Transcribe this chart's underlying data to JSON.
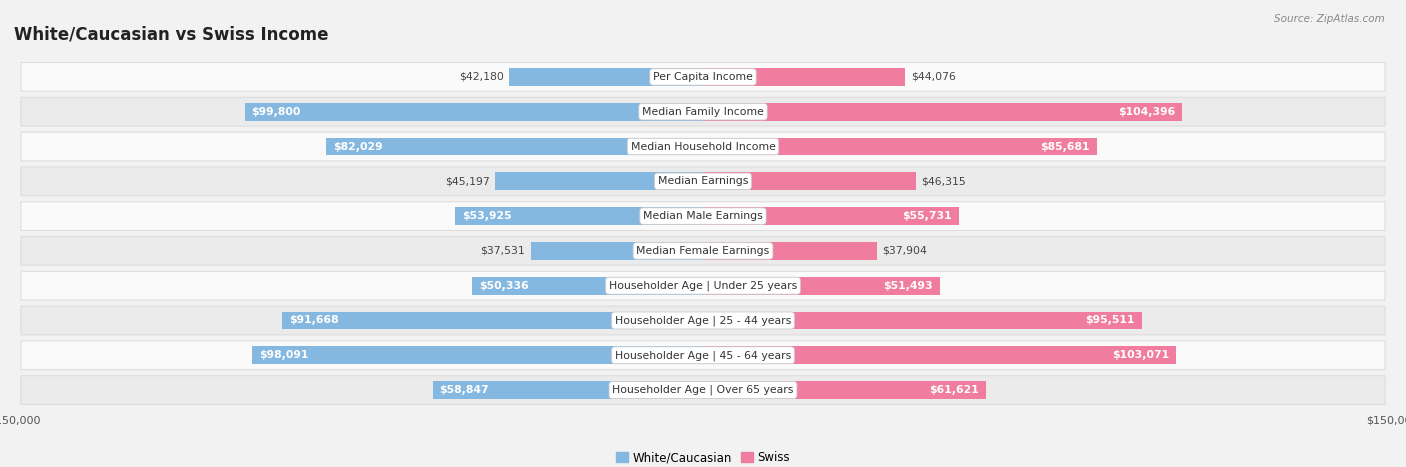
{
  "title": "White/Caucasian vs Swiss Income",
  "source": "Source: ZipAtlas.com",
  "categories": [
    "Per Capita Income",
    "Median Family Income",
    "Median Household Income",
    "Median Earnings",
    "Median Male Earnings",
    "Median Female Earnings",
    "Householder Age | Under 25 years",
    "Householder Age | 25 - 44 years",
    "Householder Age | 45 - 64 years",
    "Householder Age | Over 65 years"
  ],
  "white_values": [
    42180,
    99800,
    82029,
    45197,
    53925,
    37531,
    50336,
    91668,
    98091,
    58847
  ],
  "swiss_values": [
    44076,
    104396,
    85681,
    46315,
    55731,
    37904,
    51493,
    95511,
    103071,
    61621
  ],
  "white_labels": [
    "$42,180",
    "$99,800",
    "$82,029",
    "$45,197",
    "$53,925",
    "$37,531",
    "$50,336",
    "$91,668",
    "$98,091",
    "$58,847"
  ],
  "swiss_labels": [
    "$44,076",
    "$104,396",
    "$85,681",
    "$46,315",
    "$55,731",
    "$37,904",
    "$51,493",
    "$95,511",
    "$103,071",
    "$61,621"
  ],
  "white_color": "#85b8e0",
  "swiss_color": "#f07ca0",
  "max_value": 150000,
  "bg_color": "#f2f2f2",
  "row_light": "#fafafa",
  "row_dark": "#ebebeb",
  "title_fontsize": 12,
  "label_fontsize": 7.8,
  "cat_fontsize": 7.8,
  "legend_fontsize": 8.5,
  "axis_fontsize": 8,
  "white_inside_threshold": 50000,
  "swiss_inside_threshold": 50000
}
